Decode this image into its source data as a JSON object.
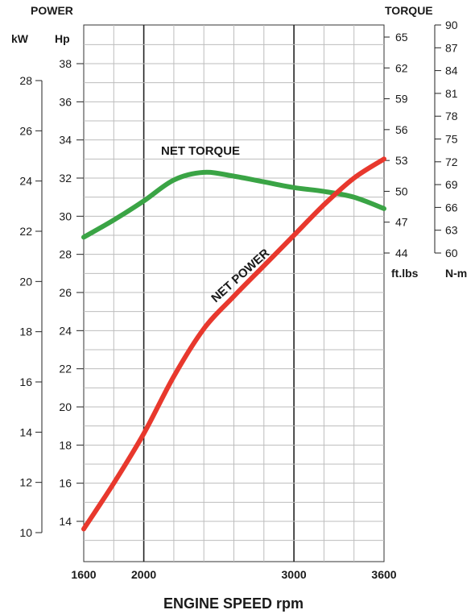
{
  "header": {
    "left_title": "POWER",
    "right_title": "TORQUE",
    "kw_unit": "kW",
    "hp_unit": "Hp",
    "ftlbs_unit": "ft.lbs",
    "nm_unit": "N-m"
  },
  "chart_data": {
    "type": "line",
    "xlabel": "ENGINE SPEED rpm",
    "x_ticks": [
      1600,
      2000,
      3000,
      3600
    ],
    "xlim": [
      1600,
      3600
    ],
    "grid": true,
    "axes": {
      "kw": {
        "ticks": [
          "10",
          "12",
          "14",
          "16",
          "18",
          "20",
          "22",
          "24",
          "26",
          "28"
        ],
        "lim": [
          10,
          28
        ]
      },
      "hp": {
        "ticks": [
          "14",
          "16",
          "18",
          "20",
          "22",
          "24",
          "26",
          "28",
          "30",
          "32",
          "34",
          "36",
          "38"
        ],
        "lim": [
          14,
          38
        ]
      },
      "ftlbs": {
        "ticks": [
          "44",
          "47",
          "50",
          "53",
          "56",
          "59",
          "62",
          "65"
        ],
        "lim": [
          44,
          65
        ]
      },
      "nm": {
        "ticks": [
          "60",
          "63",
          "66",
          "69",
          "72",
          "75",
          "78",
          "81",
          "84",
          "87",
          "90"
        ],
        "lim": [
          60,
          90
        ]
      }
    },
    "series": [
      {
        "name": "NET TORQUE",
        "axis": "hp",
        "color": "#3aa445",
        "x": [
          1600,
          1800,
          2000,
          2200,
          2400,
          2600,
          2800,
          3000,
          3200,
          3400,
          3600
        ],
        "y": [
          28.9,
          29.8,
          30.8,
          31.9,
          32.3,
          32.1,
          31.8,
          31.5,
          31.3,
          31.0,
          30.4
        ]
      },
      {
        "name": "NET POWER",
        "axis": "hp",
        "color": "#e8382d",
        "x": [
          1600,
          1800,
          2000,
          2200,
          2400,
          2600,
          2800,
          3000,
          3200,
          3400,
          3600
        ],
        "y": [
          13.6,
          16.0,
          18.6,
          21.6,
          24.1,
          25.8,
          27.4,
          29.0,
          30.6,
          32.0,
          33.0
        ]
      }
    ]
  }
}
